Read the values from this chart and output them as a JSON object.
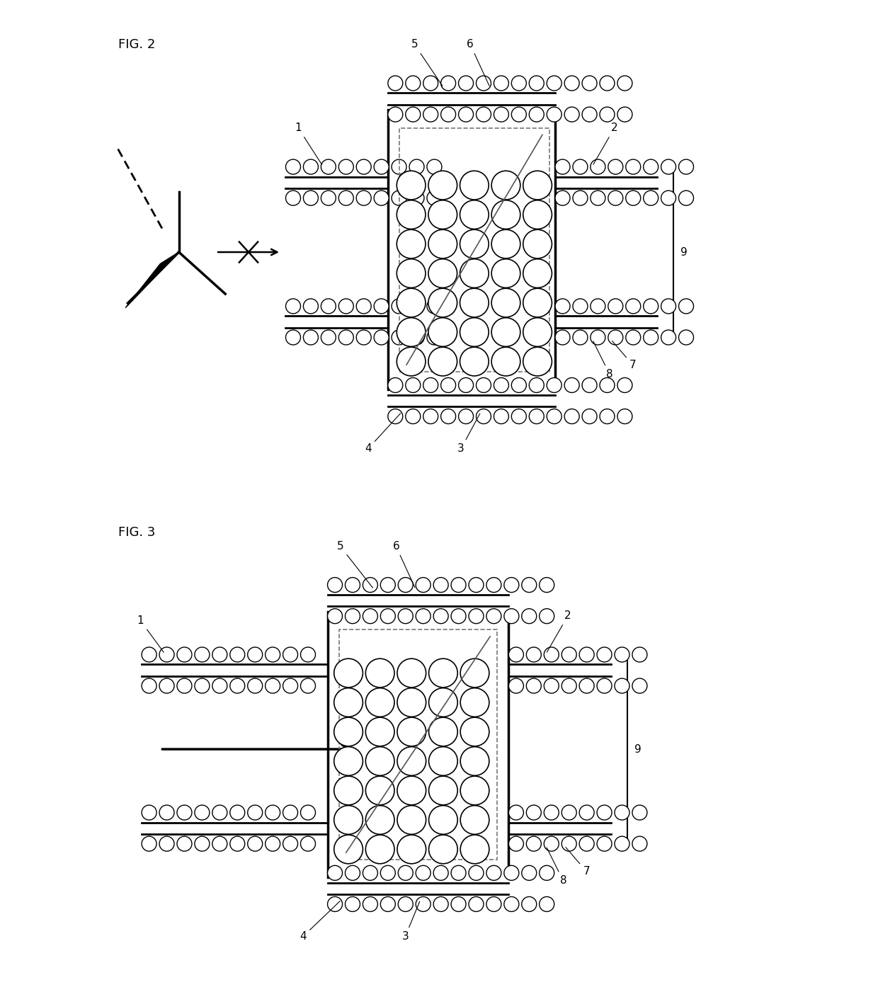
{
  "fig2_label": "FIG. 2",
  "fig3_label": "FIG. 3",
  "bg_color": "#ffffff",
  "lc": "#000000",
  "label_fs": 11,
  "fig_label_fs": 13
}
